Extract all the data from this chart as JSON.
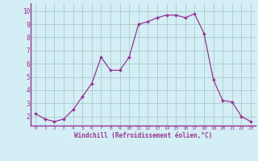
{
  "x": [
    0,
    1,
    2,
    3,
    4,
    5,
    6,
    7,
    8,
    9,
    10,
    11,
    12,
    13,
    14,
    15,
    16,
    17,
    18,
    19,
    20,
    21,
    22,
    23
  ],
  "y": [
    2.2,
    1.8,
    1.6,
    1.8,
    2.5,
    3.5,
    4.5,
    6.5,
    5.5,
    5.5,
    6.5,
    9.0,
    9.2,
    9.5,
    9.7,
    9.7,
    9.5,
    9.8,
    8.3,
    4.8,
    3.2,
    3.1,
    2.0,
    1.6
  ],
  "line_color": "#993399",
  "marker": "D",
  "marker_size": 2.0,
  "bg_color": "#d4eef5",
  "grid_color": "#aacccc",
  "tick_color": "#993399",
  "xlabel": "Windchill (Refroidissement éolien,°C)",
  "xlabel_color": "#993399",
  "ylabel_ticks": [
    2,
    3,
    4,
    5,
    6,
    7,
    8,
    9,
    10
  ],
  "xlim": [
    -0.5,
    23.5
  ],
  "ylim": [
    1.3,
    10.6
  ],
  "xticks": [
    0,
    1,
    2,
    3,
    4,
    5,
    6,
    7,
    8,
    9,
    10,
    11,
    12,
    13,
    14,
    15,
    16,
    17,
    18,
    19,
    20,
    21,
    22,
    23
  ]
}
